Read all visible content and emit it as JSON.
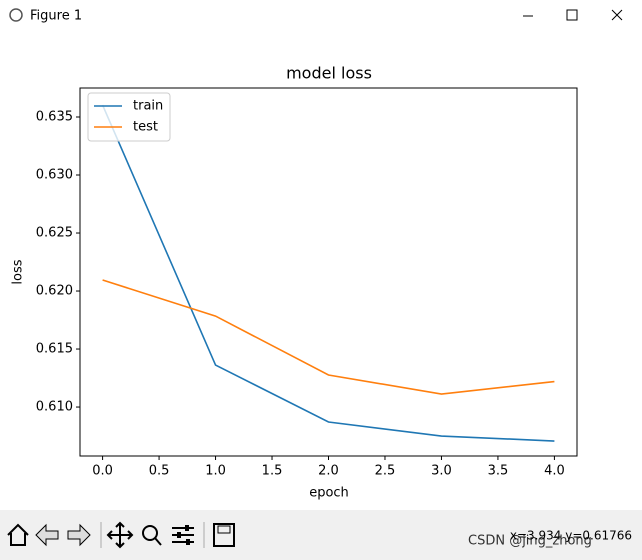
{
  "window": {
    "title": "Figure 1"
  },
  "chart_data": {
    "type": "line",
    "title": "model loss",
    "x_label": "epoch",
    "y_label": "loss",
    "x": [
      0,
      1,
      2,
      3,
      4
    ],
    "series": [
      {
        "name": "train",
        "color": "#1f77b4",
        "values": [
          0.63603,
          0.61362,
          0.60871,
          0.6075,
          0.60707
        ]
      },
      {
        "name": "test",
        "color": "#ff7f0e",
        "values": [
          0.62095,
          0.61784,
          0.61276,
          0.61112,
          0.6122
        ]
      }
    ],
    "xlim": [
      -0.2,
      4.2
    ],
    "xticks": [
      {
        "value": 0,
        "label": "0.0"
      },
      0.5,
      {
        "value": 1,
        "label": "1.0"
      },
      1.5,
      {
        "value": 2,
        "label": "2.0"
      },
      2.5,
      {
        "value": 3,
        "label": "3.0"
      },
      3.5,
      {
        "value": 4,
        "label": "4.0"
      }
    ],
    "ylim": [
      0.60578,
      0.6375
    ],
    "yticks": [
      {
        "value": 0.61,
        "label": "0.610"
      },
      0.615,
      {
        "value": 0.62,
        "label": "0.620"
      },
      0.625,
      {
        "value": 0.63,
        "label": "0.630"
      },
      0.635
    ],
    "legend": "upper left"
  },
  "status": {
    "coordinates": "x=3.934 y=0.61766",
    "watermark": "CSDN @jing_zhong"
  }
}
